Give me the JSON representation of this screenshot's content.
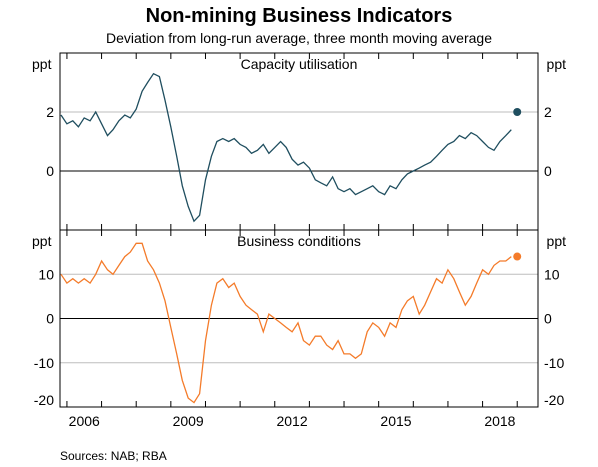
{
  "title": "Non-mining Business Indicators",
  "subtitle": "Deviation from long-run average, three month moving average",
  "source": "Sources:   NAB; RBA",
  "colors": {
    "capacity": "#1f4e5f",
    "conditions": "#f47b2a",
    "grid": "#bdbdbd"
  },
  "x_ticks": [
    "2006",
    "2009",
    "2012",
    "2015",
    "2018"
  ],
  "chart_data": [
    {
      "type": "line",
      "title": "Capacity utilisation",
      "ylabel": "ppt",
      "ylim": [
        -2,
        4
      ],
      "yticks": [
        {
          "v": 2,
          "label": "2"
        },
        {
          "v": 0,
          "label": "0"
        }
      ],
      "xlim": [
        2004.8,
        2018.6
      ],
      "grid": true,
      "x": [
        2004.83,
        2005.0,
        2005.17,
        2005.33,
        2005.5,
        2005.67,
        2005.83,
        2006.0,
        2006.17,
        2006.33,
        2006.5,
        2006.67,
        2006.83,
        2007.0,
        2007.17,
        2007.33,
        2007.5,
        2007.67,
        2007.83,
        2008.0,
        2008.17,
        2008.33,
        2008.5,
        2008.67,
        2008.83,
        2009.0,
        2009.17,
        2009.33,
        2009.5,
        2009.67,
        2009.83,
        2010.0,
        2010.17,
        2010.33,
        2010.5,
        2010.67,
        2010.83,
        2011.0,
        2011.17,
        2011.33,
        2011.5,
        2011.67,
        2011.83,
        2012.0,
        2012.17,
        2012.33,
        2012.5,
        2012.67,
        2012.83,
        2013.0,
        2013.17,
        2013.33,
        2013.5,
        2013.67,
        2013.83,
        2014.0,
        2014.17,
        2014.33,
        2014.5,
        2014.67,
        2014.83,
        2015.0,
        2015.17,
        2015.33,
        2015.5,
        2015.67,
        2015.83,
        2016.0,
        2016.17,
        2016.33,
        2016.5,
        2016.67,
        2016.83,
        2017.0,
        2017.17,
        2017.33,
        2017.5,
        2017.67,
        2017.83
      ],
      "series": [
        {
          "values": [
            1.9,
            1.6,
            1.7,
            1.5,
            1.8,
            1.7,
            2.0,
            1.6,
            1.2,
            1.4,
            1.7,
            1.9,
            1.8,
            2.1,
            2.7,
            3.0,
            3.3,
            3.2,
            2.4,
            1.5,
            0.5,
            -0.5,
            -1.2,
            -1.7,
            -1.5,
            -0.3,
            0.5,
            1.0,
            1.1,
            1.0,
            1.1,
            0.9,
            0.8,
            0.6,
            0.7,
            0.9,
            0.6,
            0.8,
            1.0,
            0.8,
            0.4,
            0.2,
            0.3,
            0.1,
            -0.3,
            -0.4,
            -0.5,
            -0.2,
            -0.6,
            -0.7,
            -0.6,
            -0.8,
            -0.7,
            -0.6,
            -0.5,
            -0.7,
            -0.8,
            -0.5,
            -0.6,
            -0.3,
            -0.1,
            0.0,
            0.1,
            0.2,
            0.3,
            0.5,
            0.7,
            0.9,
            1.0,
            1.2,
            1.1,
            1.3,
            1.2,
            1.0,
            0.8,
            0.7,
            1.0,
            1.2,
            1.4
          ]
        }
      ],
      "latest": {
        "x": 2018.0,
        "y": 2.0
      }
    },
    {
      "type": "line",
      "title": "Business conditions",
      "ylabel": "ppt",
      "ylim": [
        -20,
        20
      ],
      "yticks": [
        {
          "v": 10,
          "label": "10"
        },
        {
          "v": 0,
          "label": "0"
        },
        {
          "v": -10,
          "label": "-10"
        },
        {
          "v": -20,
          "label": "-20"
        }
      ],
      "xlim": [
        2004.8,
        2018.6
      ],
      "grid": true,
      "x": [
        2004.83,
        2005.0,
        2005.17,
        2005.33,
        2005.5,
        2005.67,
        2005.83,
        2006.0,
        2006.17,
        2006.33,
        2006.5,
        2006.67,
        2006.83,
        2007.0,
        2007.17,
        2007.33,
        2007.5,
        2007.67,
        2007.83,
        2008.0,
        2008.17,
        2008.33,
        2008.5,
        2008.67,
        2008.83,
        2009.0,
        2009.17,
        2009.33,
        2009.5,
        2009.67,
        2009.83,
        2010.0,
        2010.17,
        2010.33,
        2010.5,
        2010.67,
        2010.83,
        2011.0,
        2011.17,
        2011.33,
        2011.5,
        2011.67,
        2011.83,
        2012.0,
        2012.17,
        2012.33,
        2012.5,
        2012.67,
        2012.83,
        2013.0,
        2013.17,
        2013.33,
        2013.5,
        2013.67,
        2013.83,
        2014.0,
        2014.17,
        2014.33,
        2014.5,
        2014.67,
        2014.83,
        2015.0,
        2015.17,
        2015.33,
        2015.5,
        2015.67,
        2015.83,
        2016.0,
        2016.17,
        2016.33,
        2016.5,
        2016.67,
        2016.83,
        2017.0,
        2017.17,
        2017.33,
        2017.5,
        2017.67,
        2017.83
      ],
      "series": [
        {
          "values": [
            10,
            8,
            9,
            8,
            9,
            8,
            10,
            13,
            11,
            10,
            12,
            14,
            15,
            17,
            17,
            13,
            11,
            8,
            4,
            -2,
            -8,
            -14,
            -18,
            -19,
            -17,
            -5,
            3,
            8,
            9,
            7,
            8,
            5,
            3,
            2,
            1,
            -3,
            1,
            0,
            -1,
            -2,
            -3,
            -1,
            -5,
            -6,
            -4,
            -4,
            -6,
            -7,
            -5,
            -8,
            -8,
            -9,
            -8,
            -3,
            -1,
            -2,
            -4,
            -1,
            -2,
            2,
            4,
            5,
            1,
            3,
            6,
            9,
            8,
            11,
            9,
            6,
            3,
            5,
            8,
            11,
            10,
            12,
            13,
            13,
            14
          ]
        }
      ],
      "latest": {
        "x": 2018.0,
        "y": 14
      }
    }
  ]
}
